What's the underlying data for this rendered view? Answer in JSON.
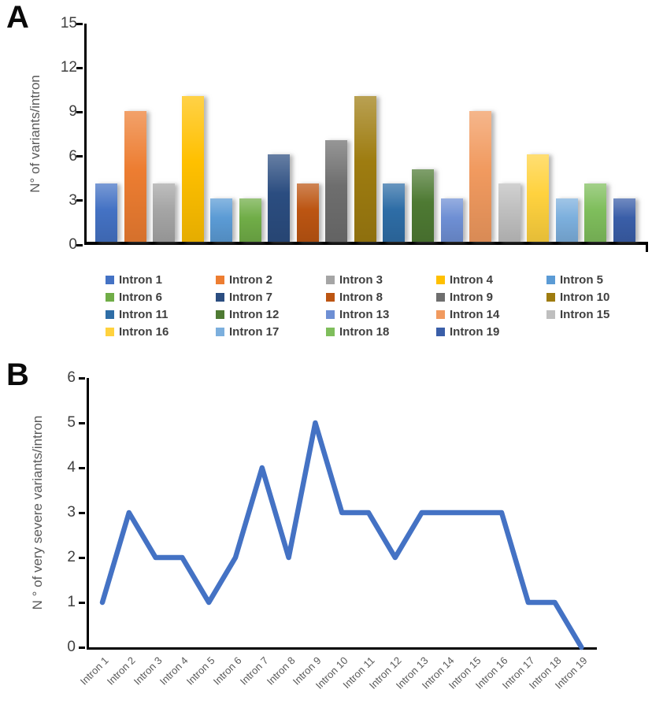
{
  "panels": {
    "a_label": "A",
    "b_label": "B"
  },
  "colors": {
    "axis": "#000000",
    "tick_label": "#404040",
    "axis_title": "#595959",
    "x_label": "#595959",
    "accent_line": "#4472C4",
    "background": "#FFFFFF"
  },
  "chart_data": [
    {
      "type": "bar",
      "panel": "A",
      "title": "",
      "xlabel": "",
      "ylabel": "N° of variants/intron",
      "categories": [
        "Intron 1",
        "Intron 2",
        "Intron 3",
        "Intron 4",
        "Intron 5",
        "Intron 6",
        "Intron 7",
        "Intron 8",
        "Intron 9",
        "Intron 10",
        "Intron 11",
        "Intron 12",
        "Intron 13",
        "Intron 14",
        "Intron 15",
        "Intron 16",
        "Intron 17",
        "Intron 18",
        "Intron 19"
      ],
      "values": [
        4,
        9,
        4,
        10,
        3,
        3,
        6,
        4,
        7,
        10,
        4,
        5,
        3,
        9,
        4,
        6,
        3,
        4,
        3
      ],
      "colors": [
        "#4472C4",
        "#ED7D31",
        "#A5A5A5",
        "#FFC000",
        "#5B9BD5",
        "#70AD47",
        "#2B4D80",
        "#BC5512",
        "#6E6E6E",
        "#9E7C10",
        "#2E6DA6",
        "#4E7A33",
        "#6E8FD4",
        "#F19A5F",
        "#BFBFBF",
        "#FFD23E",
        "#7CAFDD",
        "#7FBE5C",
        "#3A5EA8"
      ],
      "ylim": [
        0,
        15
      ],
      "yticks": [
        0,
        3,
        6,
        9,
        12,
        15
      ],
      "grid": false,
      "legend_position": "bottom",
      "legend_entries": [
        "Intron 1",
        "Intron 2",
        "Intron 3",
        "Intron 4",
        "Intron 5",
        "Intron 6",
        "Intron 7",
        "Intron 8",
        "Intron 9",
        "Intron 10",
        "Intron 11",
        "Intron 12",
        "Intron 13",
        "Intron 14",
        "Intron 15",
        "Intron 16",
        "Intron 17",
        "Intron 18",
        "Intron 19"
      ]
    },
    {
      "type": "line",
      "panel": "B",
      "title": "",
      "xlabel": "",
      "ylabel": "N ° of very severe variants/intron",
      "categories": [
        "Intron 1",
        "Intron 2",
        "Intron 3",
        "Intron 4",
        "Intron 5",
        "Intron 6",
        "Intron 7",
        "Intron 8",
        "Intron 9",
        "Intron 10",
        "Intron 11",
        "Intron 12",
        "Intron 13",
        "Intron 14",
        "Intron 15",
        "Intron 16",
        "Intron 17",
        "Intron 18",
        "Intron 19"
      ],
      "values": [
        1,
        3,
        2,
        2,
        1,
        2,
        4,
        2,
        5,
        3,
        3,
        2,
        3,
        3,
        3,
        3,
        1,
        1,
        0
      ],
      "line_color": "#4472C4",
      "ylim": [
        0,
        6
      ],
      "yticks": [
        0,
        1,
        2,
        3,
        4,
        5,
        6
      ],
      "grid": false,
      "legend_position": "none"
    }
  ]
}
